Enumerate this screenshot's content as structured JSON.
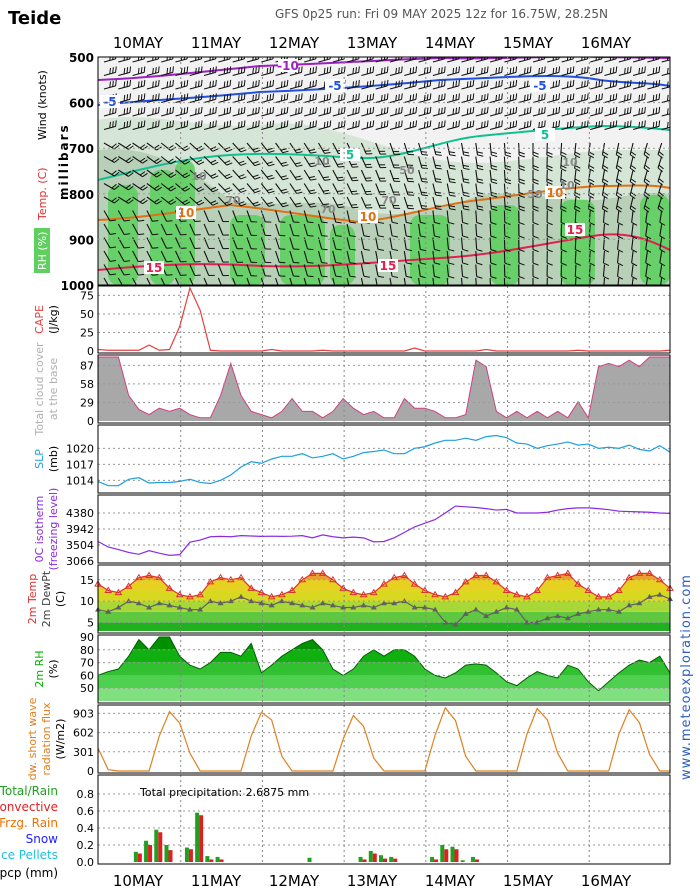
{
  "header": {
    "location": "Teide",
    "run_info": "GFS 0p25 run: Fri 09 MAY 2025 12z for 16.75W, 28.25N"
  },
  "watermark": "www.meteoexploration.com",
  "dates": [
    "10MAY",
    "11MAY",
    "12MAY",
    "13MAY",
    "14MAY",
    "15MAY",
    "16MAY"
  ],
  "colors": {
    "cape": "#e84040",
    "cloud": "#a8a8a8",
    "slp": "#1f9fe0",
    "iso": "#8a2be2",
    "temp": "#e03030",
    "dewpt": "#606060",
    "rh": "#00c000",
    "swr": "#e08020",
    "rain": "#20a020",
    "conv": "#e02020",
    "frzg": "#f07000",
    "snow": "#2020ff",
    "ice": "#20c0e0"
  },
  "chart_data": [
    {
      "type": "area",
      "title": "Upper air: Wind / Temp / RH",
      "ylabel": "millibars",
      "side_labels": [
        "Wind (knots)",
        "Temp. (C)",
        "RH (%)"
      ],
      "y_ticks": [
        "500",
        "600",
        "700",
        "800",
        "900",
        "1000"
      ],
      "isotherm_labels": [
        "-10",
        "-5",
        "-5",
        "-5",
        "5",
        "5",
        "10",
        "10",
        "10",
        "15",
        "15",
        "15"
      ],
      "rh_labels": [
        "70",
        "70",
        "70",
        "10",
        "10",
        "10",
        "50",
        "50",
        "10"
      ],
      "x": [
        0,
        0.5,
        1,
        1.5,
        2,
        2.5,
        3,
        3.5,
        4,
        4.5,
        5,
        5.5,
        6,
        6.5,
        7
      ],
      "notes": "wind barbs, isotherms and relative humidity shading by pressure level"
    },
    {
      "type": "line",
      "name": "cape",
      "ylabel": [
        "CAPE",
        "(J/kg)"
      ],
      "y_ticks": [
        "75",
        "50",
        "25",
        "0"
      ],
      "ylim": [
        0,
        85
      ],
      "x": [
        0,
        0.125,
        0.25,
        0.375,
        0.5,
        0.625,
        0.75,
        0.875,
        1,
        1.125,
        1.25,
        1.375,
        1.5,
        1.625,
        1.75,
        1.875,
        2,
        2.125,
        2.25,
        2.375,
        2.5,
        2.625,
        2.75,
        2.875,
        3,
        3.125,
        3.25,
        3.375,
        3.5,
        3.625,
        3.75,
        3.875,
        4,
        4.125,
        4.25,
        4.375,
        4.5,
        4.625,
        4.75,
        4.875,
        5,
        5.125,
        5.25,
        5.375,
        5.5,
        5.625,
        5.75,
        5.875,
        6,
        6.125,
        6.25,
        6.375,
        6.5,
        6.625,
        6.75,
        6.875,
        7
      ],
      "values": [
        2,
        1,
        1,
        1,
        1,
        8,
        1,
        2,
        33,
        85,
        55,
        1,
        0,
        0,
        0,
        0,
        0,
        2,
        0,
        0,
        0,
        0,
        1,
        0,
        0,
        0,
        0,
        0,
        0,
        0,
        0,
        4,
        0,
        0,
        0,
        0,
        0,
        0,
        2,
        0,
        0,
        0,
        0,
        0,
        0,
        0,
        0,
        1,
        0,
        0,
        0,
        0,
        0,
        0,
        0,
        0,
        1
      ]
    },
    {
      "type": "area",
      "name": "cloud",
      "ylabel": [
        "Total cloud cover",
        "at the base"
      ],
      "y_ticks": [
        "87",
        "58",
        "29",
        "0"
      ],
      "ylim": [
        0,
        100
      ],
      "x": [
        0,
        0.125,
        0.25,
        0.375,
        0.5,
        0.625,
        0.75,
        0.875,
        1,
        1.125,
        1.25,
        1.375,
        1.5,
        1.625,
        1.75,
        1.875,
        2,
        2.125,
        2.25,
        2.375,
        2.5,
        2.625,
        2.75,
        2.875,
        3,
        3.125,
        3.25,
        3.375,
        3.5,
        3.625,
        3.75,
        3.875,
        4,
        4.125,
        4.25,
        4.375,
        4.5,
        4.625,
        4.75,
        4.875,
        5,
        5.125,
        5.25,
        5.375,
        5.5,
        5.625,
        5.75,
        5.875,
        6,
        6.125,
        6.25,
        6.375,
        6.5,
        6.625,
        6.75,
        6.875,
        7
      ],
      "values": [
        100,
        100,
        100,
        40,
        18,
        10,
        20,
        15,
        20,
        10,
        5,
        5,
        40,
        90,
        40,
        15,
        10,
        5,
        15,
        35,
        15,
        15,
        5,
        15,
        35,
        20,
        10,
        15,
        5,
        5,
        35,
        20,
        20,
        15,
        5,
        5,
        10,
        95,
        85,
        15,
        5,
        15,
        5,
        15,
        5,
        15,
        5,
        30,
        5,
        85,
        90,
        85,
        95,
        85,
        100,
        100,
        100
      ]
    },
    {
      "type": "line",
      "name": "slp",
      "ylabel": [
        "SLP",
        "(mb)"
      ],
      "y_ticks": [
        "1020",
        "1017",
        "1014"
      ],
      "ylim": [
        1012,
        1024
      ],
      "x": [
        0,
        0.125,
        0.25,
        0.375,
        0.5,
        0.625,
        0.75,
        0.875,
        1,
        1.125,
        1.25,
        1.375,
        1.5,
        1.625,
        1.75,
        1.875,
        2,
        2.125,
        2.25,
        2.375,
        2.5,
        2.625,
        2.75,
        2.875,
        3,
        3.125,
        3.25,
        3.375,
        3.5,
        3.625,
        3.75,
        3.875,
        4,
        4.125,
        4.25,
        4.375,
        4.5,
        4.625,
        4.75,
        4.875,
        5,
        5.125,
        5.25,
        5.375,
        5.5,
        5.625,
        5.75,
        5.875,
        6,
        6.125,
        6.25,
        6.375,
        6.5,
        6.625,
        6.75,
        6.875,
        7
      ],
      "values": [
        1013.8,
        1013,
        1013,
        1014.2,
        1014.5,
        1013.5,
        1013.6,
        1013.6,
        1013.8,
        1014.2,
        1013.6,
        1013.4,
        1014,
        1015,
        1016.5,
        1017.5,
        1017.2,
        1018,
        1018.5,
        1018.5,
        1019,
        1018.2,
        1018.5,
        1019,
        1018,
        1018.5,
        1019.2,
        1019.4,
        1019.7,
        1019,
        1019,
        1020,
        1020.3,
        1021,
        1021.5,
        1021.5,
        1021.9,
        1021.5,
        1022.2,
        1022.4,
        1022,
        1021,
        1020.8,
        1020,
        1020.5,
        1020.8,
        1021.2,
        1020.6,
        1020.8,
        1020,
        1020.2,
        1020,
        1020.6,
        1019.8,
        1019.5,
        1020.5,
        1019.3
      ]
    },
    {
      "type": "line",
      "name": "isotherm",
      "ylabel": [
        "0C isotherm",
        "(freezing level)"
      ],
      "y_ticks": [
        "4380",
        "3942",
        "3504",
        "3066"
      ],
      "ylim": [
        3066,
        4818
      ],
      "x": [
        0,
        0.125,
        0.25,
        0.375,
        0.5,
        0.625,
        0.75,
        0.875,
        1,
        1.125,
        1.25,
        1.375,
        1.5,
        1.625,
        1.75,
        1.875,
        2,
        2.125,
        2.25,
        2.375,
        2.5,
        2.625,
        2.75,
        2.875,
        3,
        3.125,
        3.25,
        3.375,
        3.5,
        3.625,
        3.75,
        3.875,
        4,
        4.125,
        4.25,
        4.375,
        4.5,
        4.625,
        4.75,
        4.875,
        5,
        5.125,
        5.25,
        5.375,
        5.5,
        5.625,
        5.75,
        5.875,
        6,
        6.125,
        6.25,
        6.375,
        6.5,
        6.625,
        6.75,
        6.875,
        7
      ],
      "values": [
        3600,
        3450,
        3380,
        3300,
        3250,
        3350,
        3280,
        3220,
        3240,
        3580,
        3640,
        3730,
        3740,
        3730,
        3760,
        3750,
        3740,
        3745,
        3740,
        3745,
        3760,
        3700,
        3780,
        3730,
        3700,
        3720,
        3700,
        3590,
        3600,
        3700,
        3850,
        4000,
        4100,
        4200,
        4380,
        4570,
        4550,
        4530,
        4500,
        4460,
        4480,
        4380,
        4380,
        4380,
        4400,
        4460,
        4500,
        4520,
        4520,
        4500,
        4470,
        4430,
        4420,
        4410,
        4400,
        4380,
        4370
      ]
    },
    {
      "type": "area",
      "name": "temp",
      "ylabel": [
        "2m Temp",
        "2m DewPt",
        "(C)"
      ],
      "y_ticks": [
        "15",
        "10",
        "5"
      ],
      "ylim": [
        3,
        18
      ],
      "x": [
        0,
        0.125,
        0.25,
        0.375,
        0.5,
        0.625,
        0.75,
        0.875,
        1,
        1.125,
        1.25,
        1.375,
        1.5,
        1.625,
        1.75,
        1.875,
        2,
        2.125,
        2.25,
        2.375,
        2.5,
        2.625,
        2.75,
        2.875,
        3,
        3.125,
        3.25,
        3.375,
        3.5,
        3.625,
        3.75,
        3.875,
        4,
        4.125,
        4.25,
        4.375,
        4.5,
        4.625,
        4.75,
        4.875,
        5,
        5.125,
        5.25,
        5.375,
        5.5,
        5.625,
        5.75,
        5.875,
        6,
        6.125,
        6.25,
        6.375,
        6.5,
        6.625,
        6.75,
        6.875,
        7
      ],
      "series": [
        {
          "name": "2m Temp",
          "values": [
            14,
            12.5,
            12,
            13.5,
            15.5,
            16,
            15.5,
            13,
            11.5,
            11,
            11.5,
            14.5,
            15.5,
            15,
            15.5,
            13,
            12,
            11,
            11.5,
            12.5,
            15,
            16.5,
            16.5,
            15,
            13,
            12,
            11.5,
            12,
            14,
            15.5,
            16,
            14,
            12.5,
            11.5,
            11,
            12,
            14.5,
            16,
            16,
            14.5,
            12.5,
            11.5,
            11,
            12.5,
            15.5,
            16,
            16.5,
            14,
            12.5,
            11,
            11,
            12.5,
            15.5,
            16.5,
            16.5,
            15,
            13
          ]
        },
        {
          "name": "2m DewPt",
          "values": [
            8,
            7.5,
            8.5,
            10,
            9.5,
            8.5,
            9.5,
            9,
            8.5,
            8,
            8,
            10,
            9.5,
            10,
            11,
            10,
            9.5,
            9,
            10,
            9.5,
            9,
            8.5,
            9.5,
            9,
            8.5,
            8.5,
            9,
            8.5,
            9.5,
            9.5,
            10,
            8.5,
            8.5,
            8,
            5,
            4.5,
            7,
            8,
            6.5,
            7.5,
            8.5,
            8,
            5,
            5,
            6,
            6.5,
            6,
            7,
            7.5,
            8,
            8,
            7.5,
            9,
            9.5,
            11,
            11.5,
            10.5
          ]
        }
      ]
    },
    {
      "type": "area",
      "name": "rh",
      "ylabel": [
        "2m RH",
        "(%)"
      ],
      "y_ticks": [
        "90",
        "80",
        "70",
        "60",
        "50"
      ],
      "ylim": [
        40,
        90
      ],
      "x": [
        0,
        0.125,
        0.25,
        0.375,
        0.5,
        0.625,
        0.75,
        0.875,
        1,
        1.125,
        1.25,
        1.375,
        1.5,
        1.625,
        1.75,
        1.875,
        2,
        2.125,
        2.25,
        2.375,
        2.5,
        2.625,
        2.75,
        2.875,
        3,
        3.125,
        3.25,
        3.375,
        3.5,
        3.625,
        3.75,
        3.875,
        4,
        4.125,
        4.25,
        4.375,
        4.5,
        4.625,
        4.75,
        4.875,
        5,
        5.125,
        5.25,
        5.375,
        5.5,
        5.625,
        5.75,
        5.875,
        6,
        6.125,
        6.25,
        6.375,
        6.5,
        6.625,
        6.75,
        6.875,
        7
      ],
      "values": [
        60,
        63,
        65,
        75,
        88,
        80,
        90,
        90,
        75,
        68,
        65,
        70,
        78,
        78,
        75,
        85,
        62,
        68,
        75,
        80,
        85,
        88,
        80,
        65,
        60,
        65,
        75,
        80,
        75,
        80,
        80,
        75,
        65,
        60,
        58,
        62,
        68,
        69,
        68,
        62,
        55,
        52,
        58,
        63,
        60,
        58,
        68,
        65,
        55,
        48,
        55,
        62,
        68,
        72,
        70,
        75,
        62
      ]
    },
    {
      "type": "line",
      "name": "swr",
      "ylabel": [
        "dw. short wave",
        "radiation flux",
        "(W/m2)"
      ],
      "y_ticks": [
        "903",
        "602",
        "301",
        "0"
      ],
      "ylim": [
        0,
        1003
      ],
      "x": [
        0,
        0.125,
        0.25,
        0.375,
        0.5,
        0.625,
        0.75,
        0.875,
        1,
        1.125,
        1.25,
        1.375,
        1.5,
        1.625,
        1.75,
        1.875,
        2,
        2.125,
        2.25,
        2.375,
        2.5,
        2.625,
        2.75,
        2.875,
        3,
        3.125,
        3.25,
        3.375,
        3.5,
        3.625,
        3.75,
        3.875,
        4,
        4.125,
        4.25,
        4.375,
        4.5,
        4.625,
        4.75,
        4.875,
        5,
        5.125,
        5.25,
        5.375,
        5.5,
        5.625,
        5.75,
        5.875,
        6,
        6.125,
        6.25,
        6.375,
        6.5,
        6.625,
        6.75,
        6.875,
        7
      ],
      "values": [
        360,
        20,
        0,
        0,
        0,
        0,
        550,
        930,
        750,
        280,
        0,
        0,
        0,
        0,
        0,
        550,
        920,
        800,
        230,
        0,
        0,
        0,
        0,
        0,
        500,
        870,
        700,
        200,
        0,
        0,
        0,
        0,
        0,
        560,
        990,
        790,
        230,
        0,
        0,
        0,
        0,
        0,
        580,
        980,
        800,
        280,
        0,
        0,
        0,
        0,
        0,
        580,
        960,
        760,
        260,
        0,
        0
      ]
    },
    {
      "type": "bar",
      "name": "pcp",
      "ylabel": [
        "pcp (mm)"
      ],
      "legend": [
        "Total/Rain",
        "Convective",
        "Frzg. Rain",
        "Snow",
        "Ice Pellets"
      ],
      "annotation": "Total precipitation: 2.6875  mm",
      "y_ticks": [
        "0.8",
        "0.6",
        "0.4",
        "0.2",
        "0.0"
      ],
      "ylim": [
        0,
        1.0
      ],
      "x": [
        0.375,
        0.5,
        0.625,
        0.75,
        0.875,
        1,
        1.125,
        1.25,
        1.375,
        1.5,
        2.5,
        2.625,
        3,
        3.125,
        3.25,
        3.375,
        3.5,
        3.625,
        3.75,
        3.875,
        4,
        4.125,
        4.25,
        4.375,
        4.5,
        4.625,
        4.75,
        4.875,
        5,
        5.125,
        5.25,
        5.375,
        5.5,
        5.625,
        5.75,
        5.875,
        6,
        6.125,
        6.25,
        6.375,
        6.5,
        6.625,
        6.75,
        6.875,
        7
      ],
      "series": [
        {
          "name": "Total/Rain",
          "values": [
            0,
            0.12,
            0.25,
            0.38,
            0.2,
            0,
            0.17,
            0.58,
            0.07,
            0.06,
            0,
            0.05,
            0,
            0,
            0.06,
            0.13,
            0.08,
            0.06,
            0,
            0,
            0,
            0.06,
            0.2,
            0.18,
            0.02,
            0.06,
            0,
            0,
            0,
            0,
            0,
            0,
            0,
            0,
            0,
            0,
            0,
            0,
            0,
            0,
            0,
            0,
            0,
            0,
            0
          ]
        },
        {
          "name": "Convective",
          "values": [
            0,
            0.1,
            0.2,
            0.35,
            0.14,
            0,
            0.15,
            0.55,
            0.03,
            0.03,
            0,
            0,
            0,
            0,
            0.03,
            0.1,
            0.04,
            0.04,
            0,
            0,
            0,
            0.03,
            0.15,
            0.15,
            0,
            0.03,
            0,
            0,
            0,
            0,
            0,
            0,
            0,
            0,
            0,
            0,
            0,
            0,
            0,
            0,
            0,
            0,
            0,
            0,
            0
          ]
        }
      ]
    }
  ]
}
